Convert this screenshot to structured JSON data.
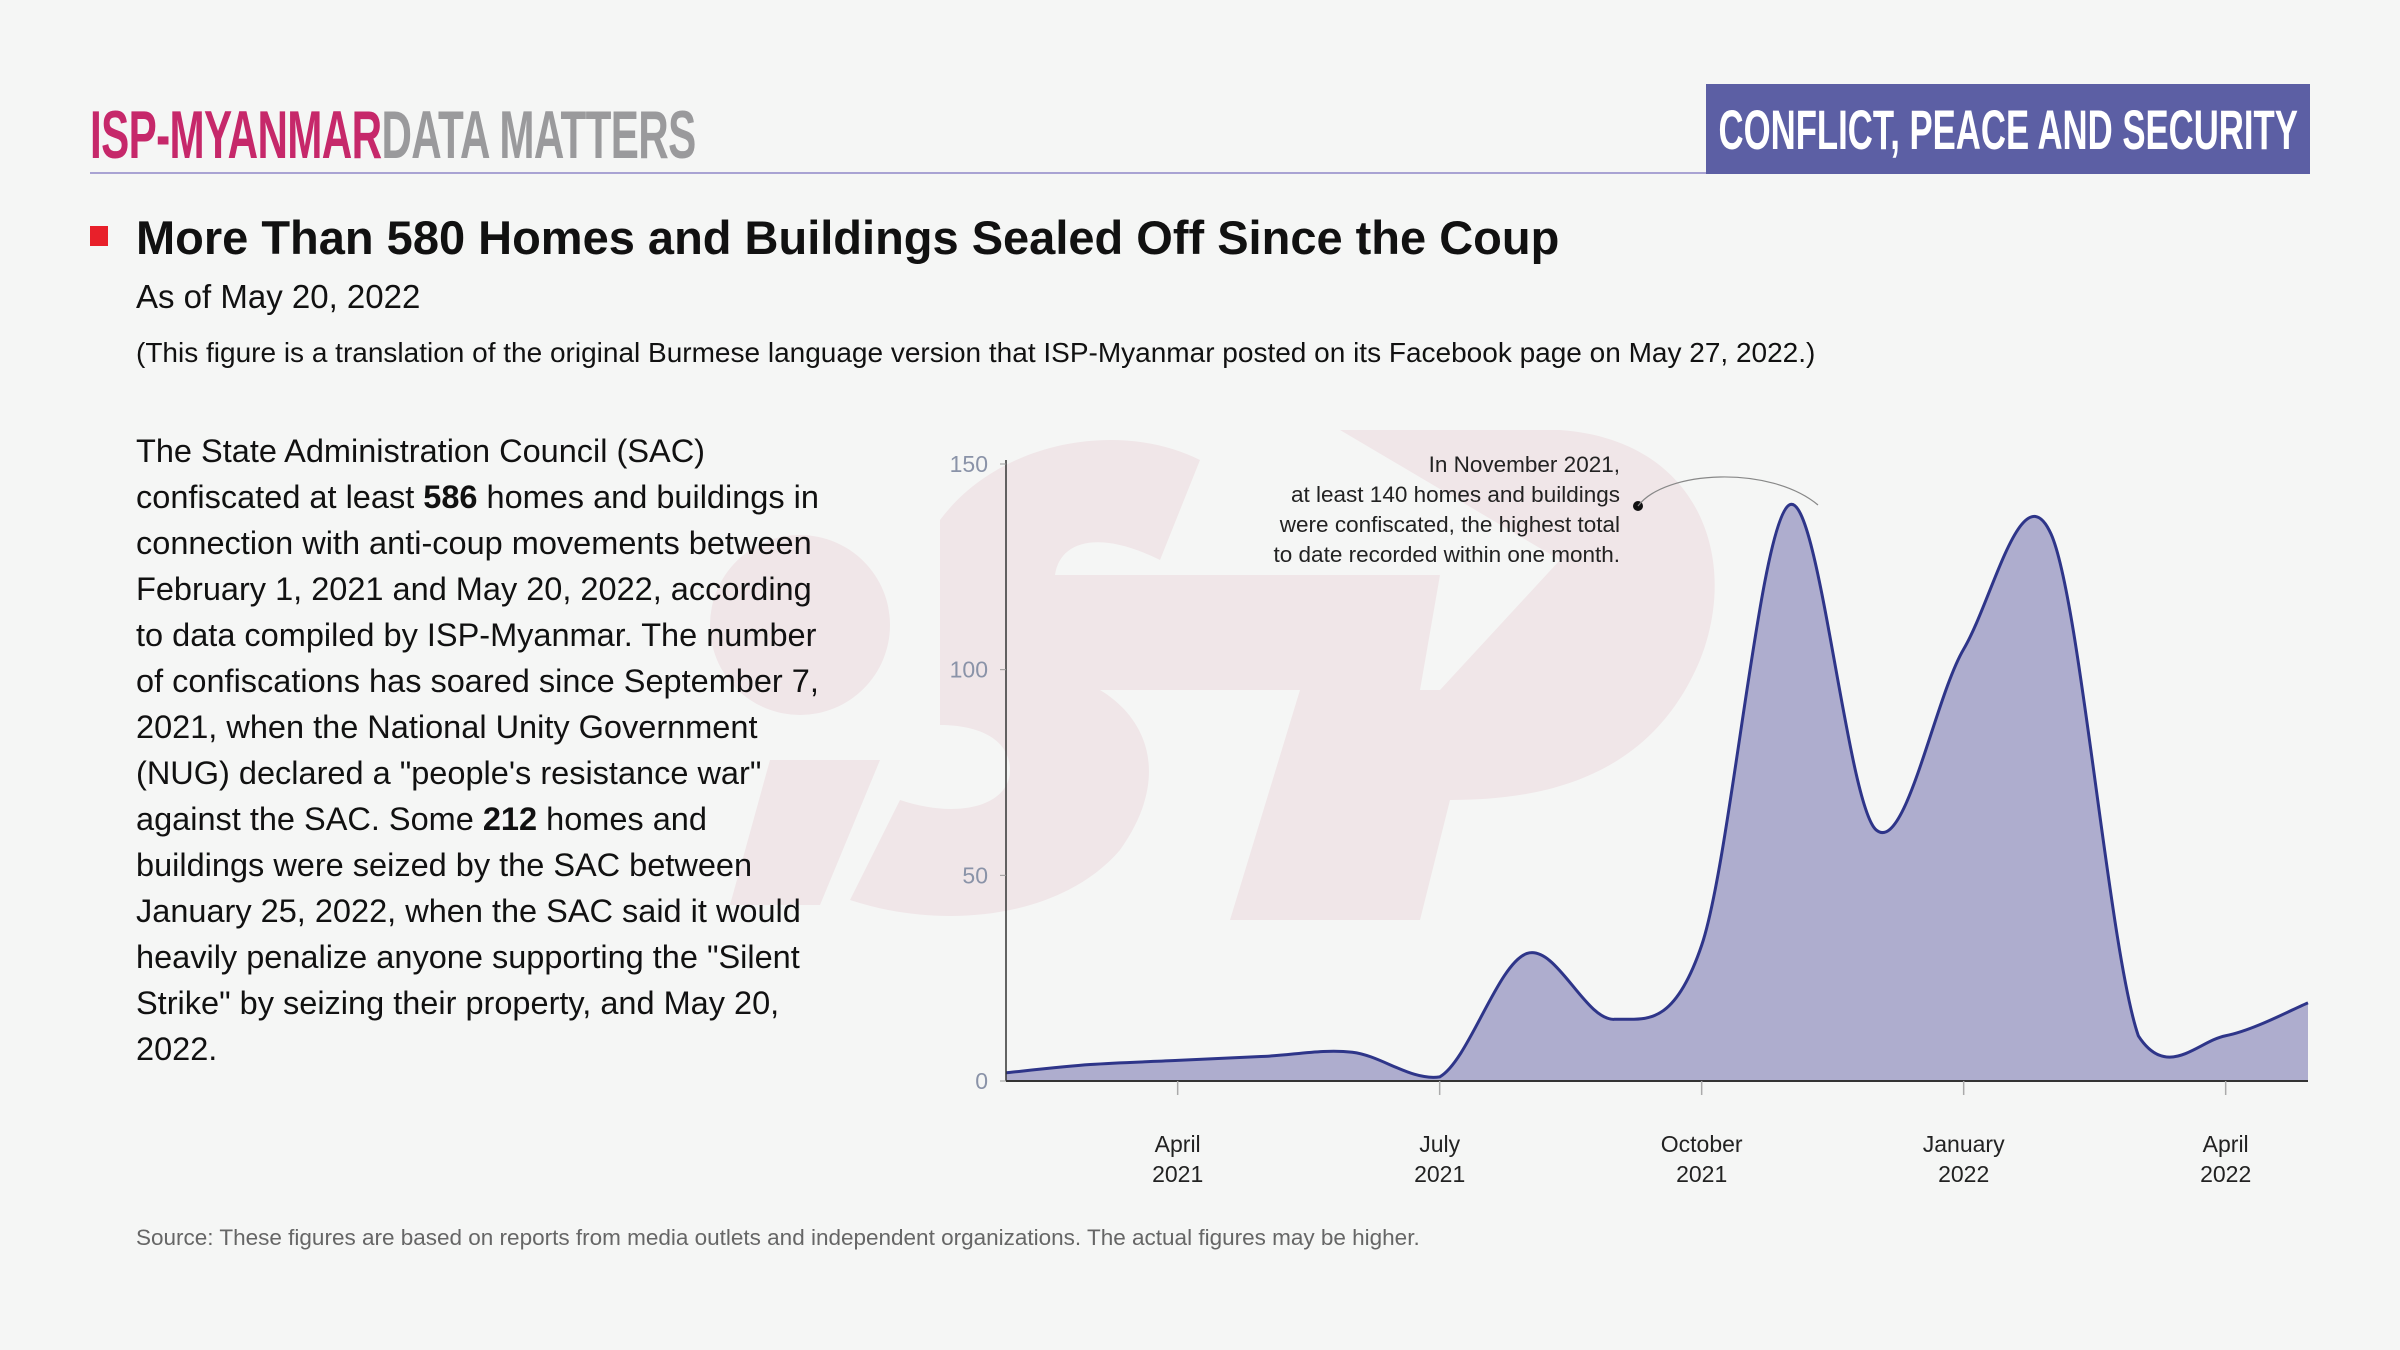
{
  "header": {
    "brand": "ISP-MYANMAR",
    "brand_suffix": "DATA MATTERS",
    "category": "CONFLICT, PEACE AND SECURITY"
  },
  "title": "More Than 580 Homes and Buildings Sealed Off Since the Coup",
  "subtitle": "As of May 20, 2022",
  "note": "(This figure is a translation of the original Burmese language version that ISP-Myanmar posted on its Facebook page on May 27, 2022.)",
  "body": {
    "p1": "The State Administration Council (SAC) confiscated at least ",
    "b1": "586",
    "p2": " homes and buildings in connection with anti-coup movements between February 1, 2021 and May 20, 2022, according to data compiled by ISP-Myanmar. The number of confiscations has soared since September 7, 2021, when the National Unity Government (NUG) declared a \"people's resistance war\" against the SAC. Some ",
    "b2": "212",
    "p3": " homes and buildings were seized by the SAC between January 25, 2022, when the SAC said it would heavily penalize anyone supporting the \"Silent Strike\" by seizing their property, and May 20, 2022."
  },
  "source": "Source: These figures are based on reports from media outlets and independent organizations. The actual figures may be higher.",
  "watermark": "iSP",
  "colors": {
    "accent": "#5c5fa4",
    "brand": "#c6286a",
    "area_fill": "#aeadce",
    "line": "#2e3589",
    "marker": "#e8202a"
  },
  "chart_data": {
    "type": "area",
    "x": [
      "2021-02",
      "2021-03",
      "2021-04",
      "2021-05",
      "2021-06",
      "2021-07",
      "2021-08",
      "2021-09",
      "2021-10",
      "2021-11",
      "2021-12",
      "2022-01",
      "2022-02",
      "2022-03",
      "2022-04",
      "2022-05"
    ],
    "values": [
      2,
      4,
      5,
      6,
      7,
      1,
      31,
      15,
      33,
      140,
      61,
      105,
      133,
      11,
      11,
      19
    ],
    "ylim": [
      0,
      150
    ],
    "yticks": [
      "0",
      "50",
      "100",
      "150"
    ],
    "xticks": [
      {
        "date": "2021-04",
        "month": "April",
        "year": "2021"
      },
      {
        "date": "2021-07",
        "month": "July",
        "year": "2021"
      },
      {
        "date": "2021-10",
        "month": "October",
        "year": "2021"
      },
      {
        "date": "2022-01",
        "month": "January",
        "year": "2022"
      },
      {
        "date": "2022-04",
        "month": "April",
        "year": "2022"
      }
    ],
    "annotation": {
      "date": "2021-11",
      "lines": [
        "In November 2021,",
        "at least 140 homes and buildings",
        "were confiscated, the highest total",
        "to date recorded within one month."
      ]
    },
    "grid": false,
    "legend": "none"
  }
}
